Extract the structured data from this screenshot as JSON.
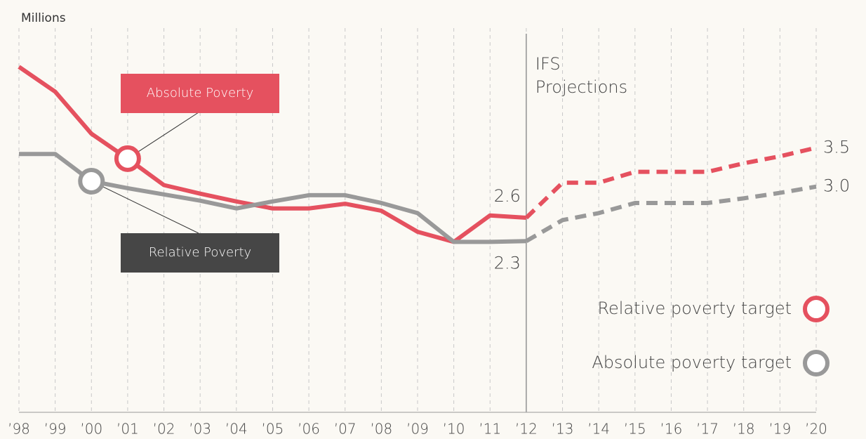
{
  "chart_data": {
    "type": "line",
    "y_label": "Millions",
    "categories": [
      "’98",
      "’99",
      "’00",
      "’01",
      "’02",
      "’03",
      "’04",
      "’05",
      "’06",
      "’07",
      "’08",
      "’09",
      "’10",
      "’11",
      "’12",
      "’13",
      "’14",
      "’15",
      "’16",
      "’17",
      "’18",
      "’19",
      "’20"
    ],
    "series": [
      {
        "name": "Absolute Poverty",
        "color": "#e5515f",
        "callout_index": 3,
        "values": [
          4.54,
          4.22,
          3.68,
          3.36,
          3.02,
          2.91,
          2.81,
          2.72,
          2.72,
          2.78,
          2.69,
          2.42,
          2.29,
          2.63,
          2.6,
          3.05,
          3.05,
          3.19,
          3.19,
          3.19,
          3.3,
          3.39,
          3.5
        ],
        "value_labels": [
          null,
          null,
          null,
          null,
          null,
          null,
          null,
          null,
          null,
          null,
          null,
          null,
          null,
          null,
          "2.6",
          null,
          null,
          null,
          null,
          null,
          null,
          null,
          "3.5"
        ]
      },
      {
        "name": "Relative Poverty",
        "color": "#999999",
        "box_color": "#464646",
        "callout_index": 2,
        "values": [
          3.42,
          3.42,
          3.07,
          2.98,
          2.9,
          2.82,
          2.72,
          2.81,
          2.89,
          2.89,
          2.79,
          2.66,
          2.29,
          2.29,
          2.3,
          2.57,
          2.66,
          2.79,
          2.79,
          2.79,
          2.85,
          2.92,
          3.0
        ],
        "value_labels": [
          null,
          null,
          null,
          null,
          null,
          null,
          null,
          null,
          null,
          null,
          null,
          null,
          null,
          null,
          "2.3",
          null,
          null,
          null,
          null,
          null,
          null,
          null,
          "3.0"
        ]
      }
    ],
    "projection": {
      "from": "’12",
      "label": [
        "IFS",
        "Projections"
      ]
    },
    "legend": [
      {
        "label": "Relative poverty target",
        "color": "#e5515f"
      },
      {
        "label": "Absolute poverty target",
        "color": "#999999"
      }
    ],
    "ylim": [
      0.1,
      5.2
    ],
    "grid": true
  }
}
